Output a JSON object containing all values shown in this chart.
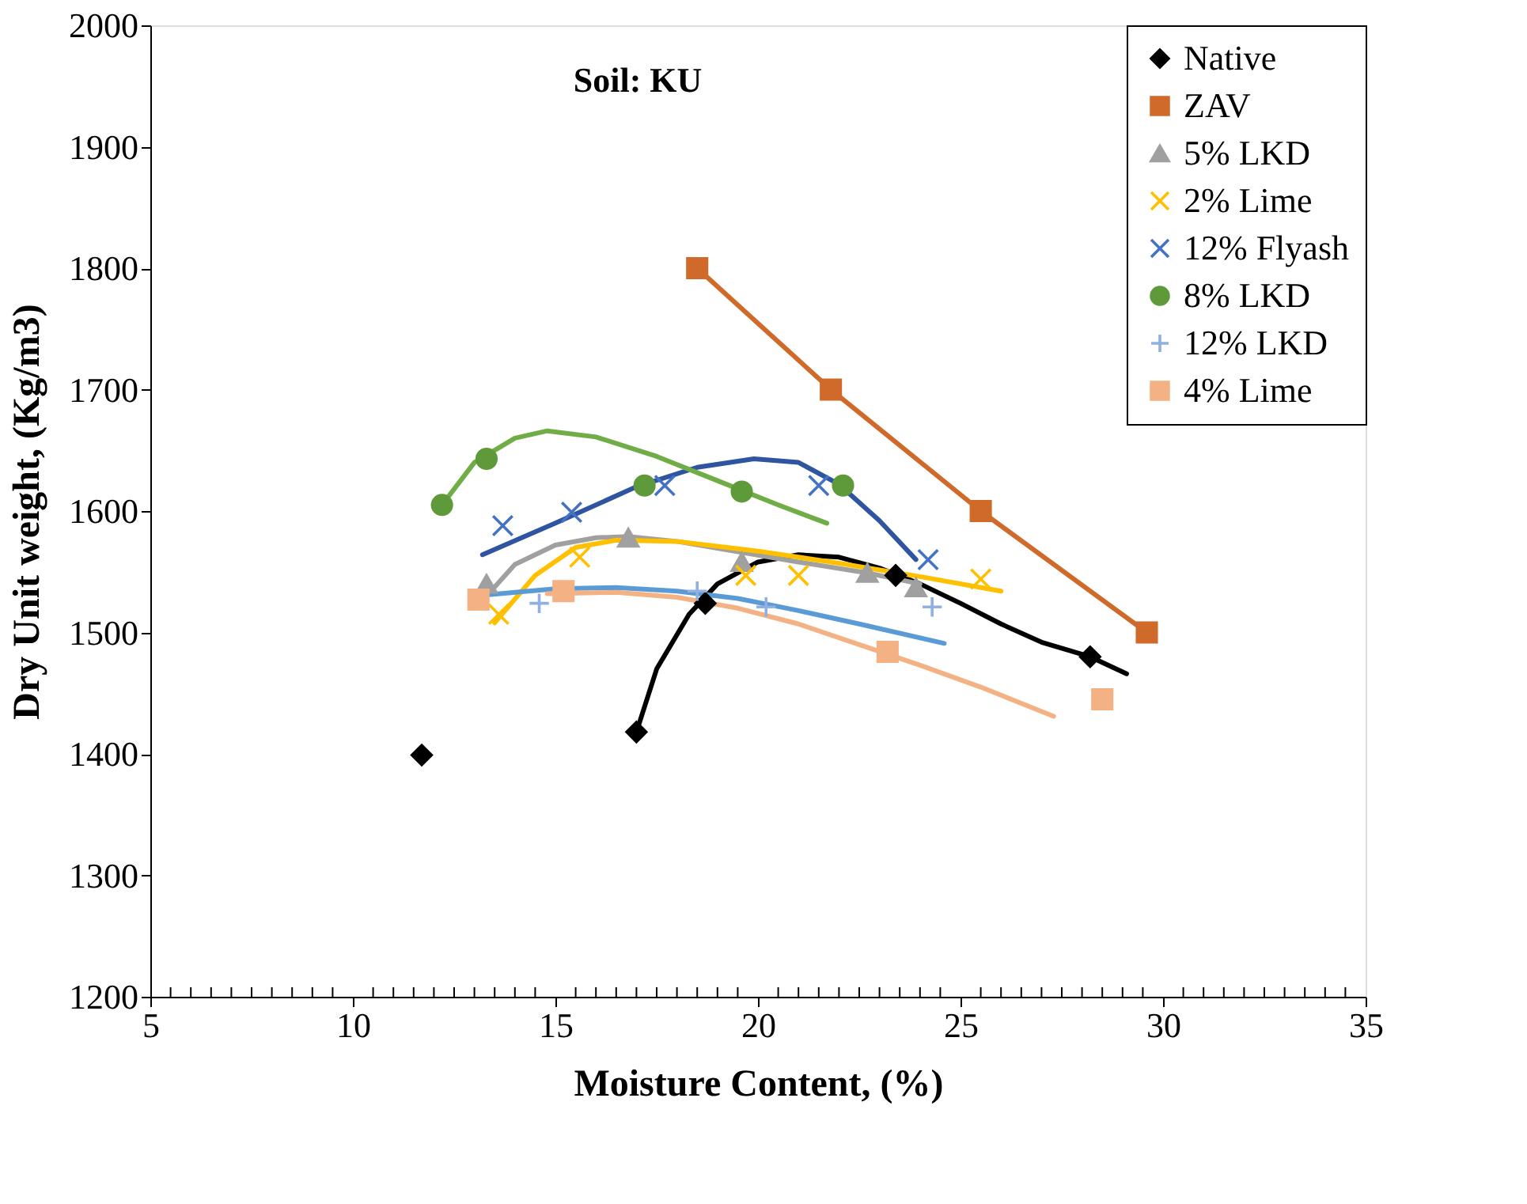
{
  "chart_data": {
    "type": "scatter",
    "xlabel": "Moisture Content, (%)",
    "ylabel": "Dry Unit weight, (Kg/m3)",
    "annotations": [
      "Soil: KU"
    ],
    "xlim": [
      5,
      35
    ],
    "ylim": [
      1200,
      2000
    ],
    "xticks": [
      5,
      {
        "value": 5.5,
        "label": null
      },
      {
        "value": 6,
        "label": null
      },
      {
        "value": 6.5,
        "label": null
      },
      {
        "value": 7,
        "label": null
      },
      {
        "value": 7.5,
        "label": null
      },
      {
        "value": 8,
        "label": null
      },
      {
        "value": 8.5,
        "label": null
      },
      {
        "value": 9,
        "label": null
      },
      {
        "value": 9.5,
        "label": null
      },
      10,
      {
        "value": 10.5,
        "label": null
      },
      {
        "value": 11,
        "label": null
      },
      {
        "value": 11.5,
        "label": null
      },
      {
        "value": 12,
        "label": null
      },
      {
        "value": 12.5,
        "label": null
      },
      {
        "value": 13,
        "label": null
      },
      {
        "value": 13.5,
        "label": null
      },
      {
        "value": 14,
        "label": null
      },
      {
        "value": 14.5,
        "label": null
      },
      15,
      {
        "value": 15.5,
        "label": null
      },
      {
        "value": 16,
        "label": null
      },
      {
        "value": 16.5,
        "label": null
      },
      {
        "value": 17,
        "label": null
      },
      {
        "value": 17.5,
        "label": null
      },
      {
        "value": 18,
        "label": null
      },
      {
        "value": 18.5,
        "label": null
      },
      {
        "value": 19,
        "label": null
      },
      {
        "value": 19.5,
        "label": null
      },
      20,
      {
        "value": 20.5,
        "label": null
      },
      {
        "value": 21,
        "label": null
      },
      {
        "value": 21.5,
        "label": null
      },
      {
        "value": 22,
        "label": null
      },
      {
        "value": 22.5,
        "label": null
      },
      {
        "value": 23,
        "label": null
      },
      {
        "value": 23.5,
        "label": null
      },
      {
        "value": 24,
        "label": null
      },
      {
        "value": 24.5,
        "label": null
      },
      25,
      {
        "value": 25.5,
        "label": null
      },
      {
        "value": 26,
        "label": null
      },
      {
        "value": 26.5,
        "label": null
      },
      {
        "value": 27,
        "label": null
      },
      {
        "value": 27.5,
        "label": null
      },
      {
        "value": 28,
        "label": null
      },
      {
        "value": 28.5,
        "label": null
      },
      {
        "value": 29,
        "label": null
      },
      {
        "value": 29.5,
        "label": null
      },
      30,
      {
        "value": 30.5,
        "label": null
      },
      {
        "value": 31,
        "label": null
      },
      {
        "value": 31.5,
        "label": null
      },
      {
        "value": 32,
        "label": null
      },
      {
        "value": 32.5,
        "label": null
      },
      {
        "value": 33,
        "label": null
      },
      {
        "value": 33.5,
        "label": null
      },
      {
        "value": 34,
        "label": null
      },
      {
        "value": 34.5,
        "label": null
      },
      35
    ],
    "yticks": [
      1200,
      1300,
      1400,
      1500,
      1600,
      1700,
      1800,
      1900,
      2000
    ],
    "grid": false,
    "legend": "top right",
    "series": [
      {
        "name": "Native",
        "marker": "diamond",
        "color": "#000000",
        "x": [
          11.7,
          17.0,
          18.7,
          23.4,
          28.2
        ],
        "values": [
          1399,
          1418,
          1524,
          1547,
          1480
        ]
      },
      {
        "name": "ZAV",
        "type": "line",
        "marker": "square",
        "color": "#d06a2a",
        "x": [
          18.5,
          21.8,
          25.5,
          29.6
        ],
        "values": [
          1800,
          1700,
          1600,
          1500
        ]
      },
      {
        "name": "5% LKD",
        "marker": "triangle",
        "color": "#a0a0a0",
        "x": [
          13.3,
          16.8,
          19.6,
          22.7,
          23.9
        ],
        "values": [
          1540,
          1578,
          1558,
          1549,
          1537
        ]
      },
      {
        "name": "2% Lime",
        "marker": "cross",
        "color": "#ffc000",
        "x": [
          13.6,
          15.6,
          19.7,
          21.0,
          25.5
        ],
        "values": [
          1515,
          1562,
          1547,
          1547,
          1544
        ]
      },
      {
        "name": "12% Flyash",
        "marker": "cross",
        "color": "#4472c4",
        "x": [
          13.7,
          15.4,
          17.7,
          21.5,
          24.2
        ],
        "values": [
          1588,
          1599,
          1621,
          1621,
          1560
        ]
      },
      {
        "name": "8% LKD",
        "marker": "circle",
        "color": "#5f9a3a",
        "x": [
          12.2,
          13.3,
          17.2,
          19.6,
          22.1
        ],
        "values": [
          1605,
          1643,
          1621,
          1616,
          1621
        ]
      },
      {
        "name": "12% LKD",
        "marker": "plus",
        "color": "#8fb0e0",
        "x": [
          14.6,
          18.5,
          20.2,
          24.3
        ],
        "values": [
          1524,
          1534,
          1521,
          1521
        ]
      },
      {
        "name": "4% Lime",
        "marker": "square",
        "color": "#f4b183",
        "x": [
          13.1,
          15.2,
          23.2,
          28.5
        ],
        "values": [
          1527,
          1534,
          1484,
          1445
        ]
      },
      {
        "type": "line",
        "marker": "none",
        "color": "#000000",
        "x": [
          17.0,
          17.5,
          18.3,
          19.0,
          20.0,
          21.0,
          22.0,
          23.0,
          24.0,
          25.0,
          26.0,
          27.0,
          28.2,
          29.1
        ],
        "values": [
          1418,
          1470,
          1515,
          1540,
          1558,
          1564,
          1562,
          1553,
          1540,
          1524,
          1507,
          1492,
          1480,
          1466
        ]
      },
      {
        "type": "line",
        "marker": "none",
        "color": "#a0a0a0",
        "x": [
          13.3,
          14.0,
          15.0,
          16.0,
          16.8,
          18.0,
          19.6,
          21.0,
          22.7,
          24.0
        ],
        "values": [
          1530,
          1556,
          1572,
          1578,
          1579,
          1575,
          1566,
          1558,
          1549,
          1540
        ]
      },
      {
        "type": "line",
        "marker": "none",
        "color": "#ffc000",
        "x": [
          13.5,
          14.5,
          15.5,
          16.5,
          18.0,
          20.0,
          22.0,
          24.0,
          26.0
        ],
        "values": [
          1508,
          1547,
          1570,
          1576,
          1575,
          1567,
          1557,
          1546,
          1534
        ]
      },
      {
        "type": "line",
        "marker": "none",
        "color": "#2f55a0",
        "x": [
          13.2,
          15.0,
          17.0,
          18.5,
          19.9,
          21.0,
          22.0,
          23.0,
          23.9
        ],
        "values": [
          1564,
          1590,
          1620,
          1636,
          1643,
          1640,
          1622,
          1592,
          1560
        ]
      },
      {
        "type": "line",
        "marker": "none",
        "color": "#70ad47",
        "x": [
          12.2,
          13.0,
          14.0,
          14.8,
          16.0,
          17.5,
          19.0,
          20.5,
          21.7
        ],
        "values": [
          1605,
          1640,
          1660,
          1666,
          1661,
          1645,
          1625,
          1605,
          1590
        ]
      },
      {
        "type": "line",
        "marker": "none",
        "color": "#5b9bd5",
        "x": [
          13.3,
          15.0,
          16.5,
          18.0,
          19.5,
          21.0,
          22.5,
          24.6
        ],
        "values": [
          1531,
          1536,
          1537,
          1534,
          1528,
          1518,
          1507,
          1491
        ]
      },
      {
        "type": "line",
        "marker": "none",
        "color": "#f4b183",
        "x": [
          14.8,
          16.5,
          18.0,
          19.5,
          21.0,
          22.5,
          24.0,
          25.5,
          27.3
        ],
        "values": [
          1532,
          1533,
          1529,
          1520,
          1507,
          1490,
          1473,
          1455,
          1431
        ]
      }
    ]
  }
}
